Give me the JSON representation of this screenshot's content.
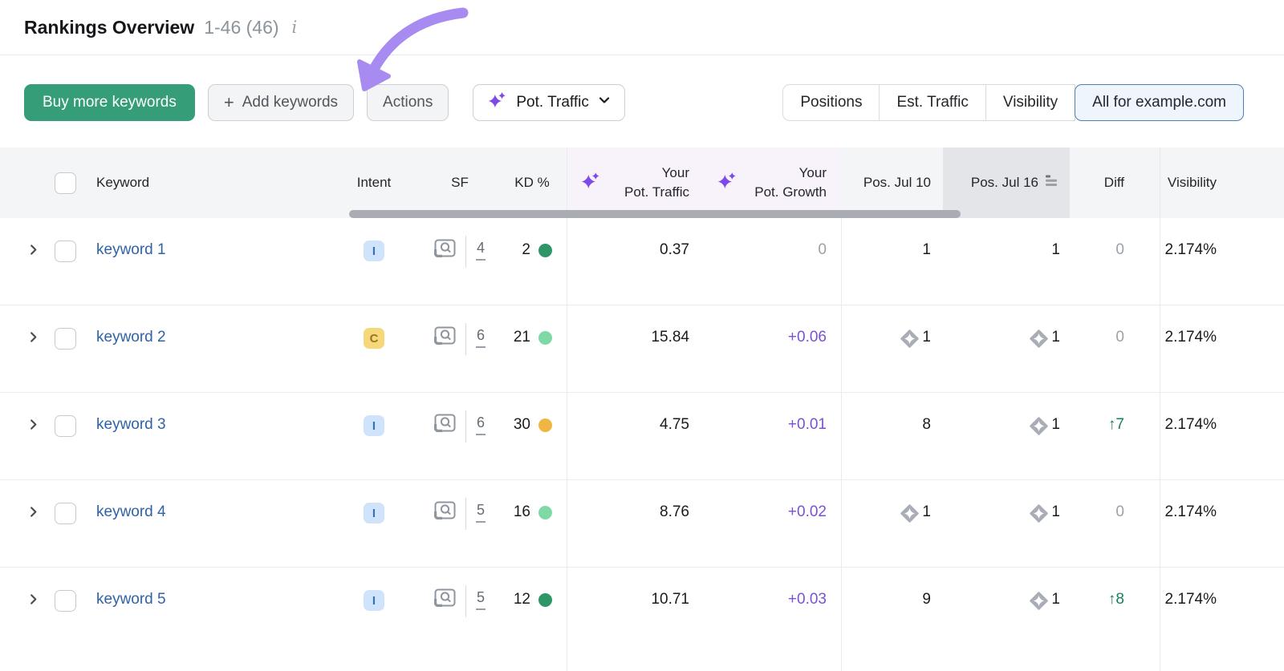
{
  "header": {
    "title": "Rankings Overview",
    "count": "1-46 (46)",
    "info_icon": "i"
  },
  "toolbar": {
    "buy_more_label": "Buy more keywords",
    "add_plus": "+",
    "add_keywords_label": "Add keywords",
    "actions_label": "Actions",
    "metric_dropdown_label": "Pot. Traffic",
    "view_tabs": [
      {
        "label": "Positions",
        "selected": false
      },
      {
        "label": "Est. Traffic",
        "selected": false
      },
      {
        "label": "Visibility",
        "selected": false
      },
      {
        "label": "All for example.com",
        "selected": true
      }
    ]
  },
  "table": {
    "columns": {
      "keyword": "Keyword",
      "intent": "Intent",
      "sf": "SF",
      "kd": "KD %",
      "pot_traffic_line1": "Your",
      "pot_traffic_line2": "Pot. Traffic",
      "pot_growth_line1": "Your",
      "pot_growth_line2": "Pot. Growth",
      "pos_prev": "Pos. Jul 10",
      "pos_curr": "Pos. Jul 16",
      "diff": "Diff",
      "visibility": "Visibility"
    },
    "sorted_column": "Pos. Jul 16",
    "rows": [
      {
        "keyword": "keyword 1",
        "intent": {
          "label": "I",
          "bg": "#cfe3fa",
          "color": "#3a6fba"
        },
        "sf": "4",
        "kd": {
          "value": "2",
          "color": "#2f9669"
        },
        "pot_traffic": "0.37",
        "pot_growth": {
          "text": "0",
          "type": "muted"
        },
        "pos_prev": {
          "text": "1",
          "badge": false
        },
        "pos_curr": {
          "text": "1",
          "badge": false
        },
        "diff": {
          "text": "0",
          "type": "muted"
        },
        "visibility": "2.174%"
      },
      {
        "keyword": "keyword 2",
        "intent": {
          "label": "C",
          "bg": "#f5d87a",
          "color": "#9c731d"
        },
        "sf": "6",
        "kd": {
          "value": "21",
          "color": "#7ed9a7"
        },
        "pot_traffic": "15.84",
        "pot_growth": {
          "text": "+0.06",
          "type": "purple"
        },
        "pos_prev": {
          "text": "1",
          "badge": true
        },
        "pos_curr": {
          "text": "1",
          "badge": true
        },
        "diff": {
          "text": "0",
          "type": "muted"
        },
        "visibility": "2.174%"
      },
      {
        "keyword": "keyword 3",
        "intent": {
          "label": "I",
          "bg": "#cfe3fa",
          "color": "#3a6fba"
        },
        "sf": "6",
        "kd": {
          "value": "30",
          "color": "#efb643"
        },
        "pot_traffic": "4.75",
        "pot_growth": {
          "text": "+0.01",
          "type": "purple"
        },
        "pos_prev": {
          "text": "8",
          "badge": false
        },
        "pos_curr": {
          "text": "1",
          "badge": true
        },
        "diff": {
          "text": "↑7",
          "type": "up"
        },
        "visibility": "2.174%"
      },
      {
        "keyword": "keyword 4",
        "intent": {
          "label": "I",
          "bg": "#cfe3fa",
          "color": "#3a6fba"
        },
        "sf": "5",
        "kd": {
          "value": "16",
          "color": "#7ed9a7"
        },
        "pot_traffic": "8.76",
        "pot_growth": {
          "text": "+0.02",
          "type": "purple"
        },
        "pos_prev": {
          "text": "1",
          "badge": true
        },
        "pos_curr": {
          "text": "1",
          "badge": true
        },
        "diff": {
          "text": "0",
          "type": "muted"
        },
        "visibility": "2.174%"
      },
      {
        "keyword": "keyword 5",
        "intent": {
          "label": "I",
          "bg": "#cfe3fa",
          "color": "#3a6fba"
        },
        "sf": "5",
        "kd": {
          "value": "12",
          "color": "#2f9669"
        },
        "pot_traffic": "10.71",
        "pot_growth": {
          "text": "+0.03",
          "type": "purple"
        },
        "pos_prev": {
          "text": "9",
          "badge": false
        },
        "pos_curr": {
          "text": "1",
          "badge": true
        },
        "diff": {
          "text": "↑8",
          "type": "up"
        },
        "visibility": "2.174%"
      }
    ]
  },
  "colors": {
    "accent_green": "#359e78",
    "sparkle_purple": "#7d49e8",
    "annotation_arrow": "#a78bf0",
    "selected_tab_bg": "#eef5fd",
    "selected_tab_border": "#4c80ba",
    "link_blue": "#2e63a8",
    "growth_purple": "#7b50d8",
    "diff_up_green": "#17805c",
    "header_bg": "#f4f5f7",
    "pot_header_bg": "#f8f3fb",
    "sorted_header_bg": "#e3e5e9"
  }
}
